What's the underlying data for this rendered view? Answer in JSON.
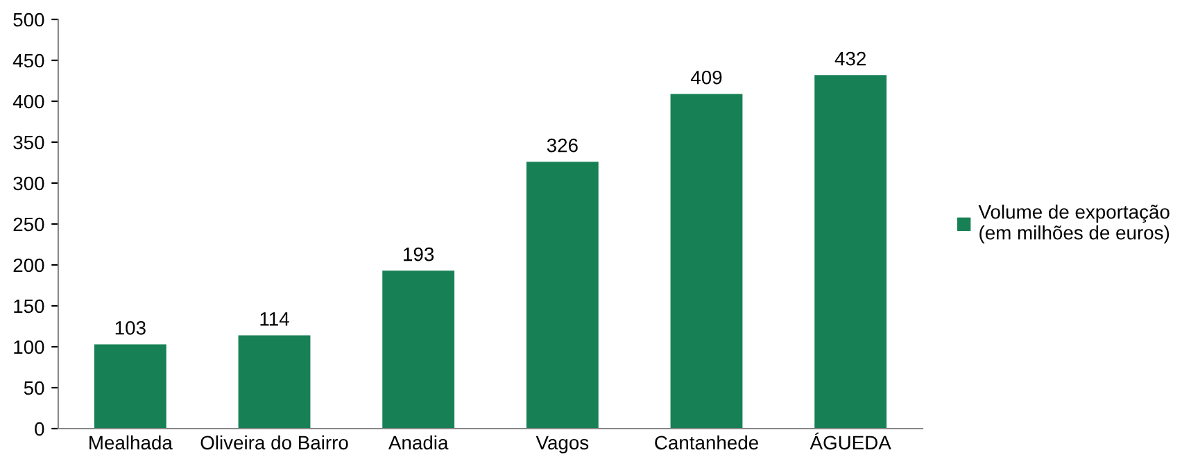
{
  "chart_data": {
    "type": "bar",
    "categories": [
      "Mealhada",
      "Oliveira do Bairro",
      "Anadia",
      "Vagos",
      "Cantanhede",
      "ÁGUEDA"
    ],
    "series": [
      {
        "name": "Volume de exportação\n(em milhões de euros)",
        "color": "#178055",
        "values": [
          103,
          114,
          193,
          326,
          409,
          432
        ]
      }
    ],
    "ylim": [
      0,
      500
    ],
    "yticks": [
      0,
      50,
      100,
      150,
      200,
      250,
      300,
      350,
      400,
      450,
      500
    ],
    "grid": false,
    "legend": "right",
    "data_labels": true
  }
}
